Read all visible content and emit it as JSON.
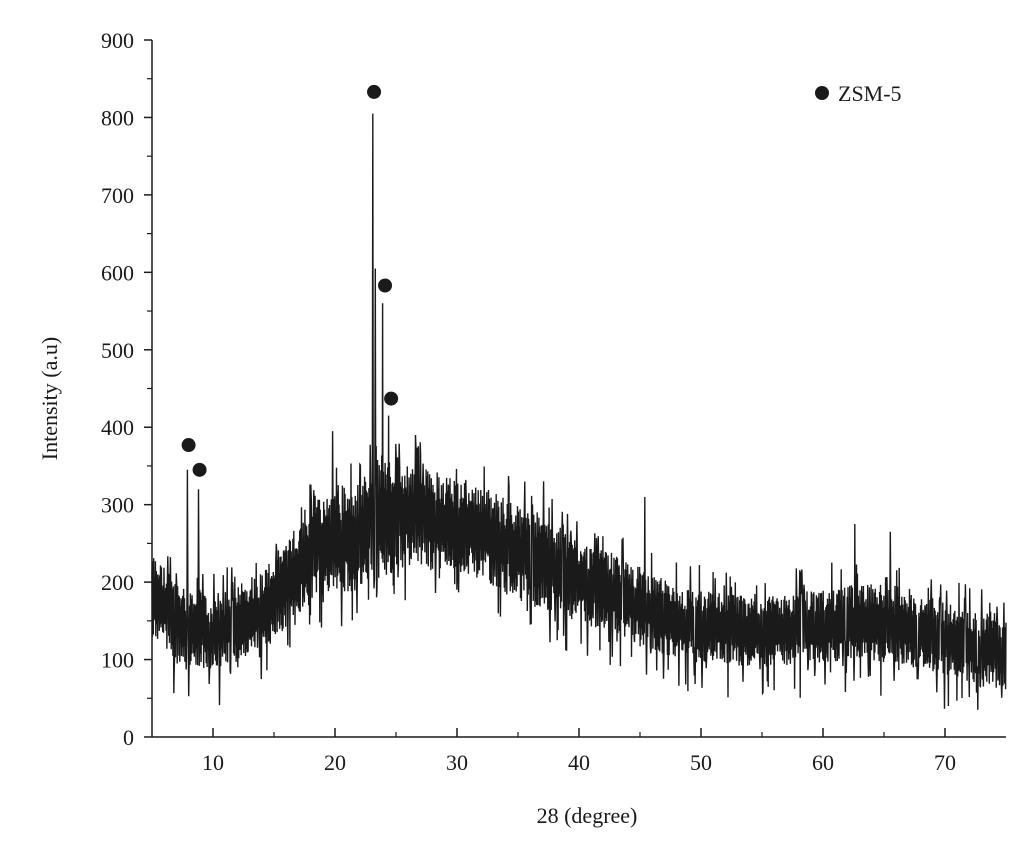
{
  "chart_data": {
    "type": "line",
    "xlabel": "28 (degree)",
    "ylabel": "Intensity (a.u)",
    "xlim": [
      5,
      75
    ],
    "ylim": [
      0,
      900
    ],
    "x_ticks": [
      10,
      20,
      30,
      40,
      50,
      60,
      70
    ],
    "y_ticks": [
      0,
      100,
      200,
      300,
      400,
      500,
      600,
      700,
      800,
      900
    ],
    "x_minor_step": 5,
    "y_minor_step": 50,
    "legend": {
      "label": "ZSM-5",
      "marker": "filled-circle",
      "placement": "top-right"
    },
    "line_color": "#1a1a1a",
    "background_envelope": [
      {
        "x": 5,
        "lo": 130,
        "hi": 240
      },
      {
        "x": 7,
        "lo": 95,
        "hi": 200
      },
      {
        "x": 9,
        "lo": 90,
        "hi": 190
      },
      {
        "x": 10,
        "lo": 80,
        "hi": 175
      },
      {
        "x": 12,
        "lo": 100,
        "hi": 200
      },
      {
        "x": 14,
        "lo": 110,
        "hi": 215
      },
      {
        "x": 16,
        "lo": 140,
        "hi": 255
      },
      {
        "x": 18,
        "lo": 170,
        "hi": 295
      },
      {
        "x": 20,
        "lo": 180,
        "hi": 320
      },
      {
        "x": 22,
        "lo": 190,
        "hi": 330
      },
      {
        "x": 24,
        "lo": 200,
        "hi": 370
      },
      {
        "x": 26,
        "lo": 220,
        "hi": 350
      },
      {
        "x": 28,
        "lo": 215,
        "hi": 345
      },
      {
        "x": 30,
        "lo": 210,
        "hi": 335
      },
      {
        "x": 32,
        "lo": 205,
        "hi": 325
      },
      {
        "x": 35,
        "lo": 175,
        "hi": 300
      },
      {
        "x": 38,
        "lo": 155,
        "hi": 275
      },
      {
        "x": 40,
        "lo": 145,
        "hi": 255
      },
      {
        "x": 42,
        "lo": 140,
        "hi": 240
      },
      {
        "x": 45,
        "lo": 120,
        "hi": 220
      },
      {
        "x": 48,
        "lo": 100,
        "hi": 195
      },
      {
        "x": 50,
        "lo": 95,
        "hi": 190
      },
      {
        "x": 55,
        "lo": 90,
        "hi": 180
      },
      {
        "x": 60,
        "lo": 95,
        "hi": 190
      },
      {
        "x": 63,
        "lo": 100,
        "hi": 200
      },
      {
        "x": 66,
        "lo": 95,
        "hi": 195
      },
      {
        "x": 70,
        "lo": 80,
        "hi": 175
      },
      {
        "x": 73,
        "lo": 65,
        "hi": 160
      },
      {
        "x": 75,
        "lo": 60,
        "hi": 150
      }
    ],
    "peaks": [
      {
        "x": 7.9,
        "y": 345
      },
      {
        "x": 8.8,
        "y": 320
      },
      {
        "x": 19.8,
        "y": 395
      },
      {
        "x": 23.1,
        "y": 805
      },
      {
        "x": 23.3,
        "y": 605
      },
      {
        "x": 23.9,
        "y": 560
      },
      {
        "x": 24.4,
        "y": 415
      },
      {
        "x": 26.6,
        "y": 390
      },
      {
        "x": 37.1,
        "y": 330
      },
      {
        "x": 45.4,
        "y": 310
      },
      {
        "x": 62.6,
        "y": 275
      },
      {
        "x": 65.5,
        "y": 265
      }
    ],
    "markers": [
      {
        "x": 8.0,
        "y": 377
      },
      {
        "x": 8.9,
        "y": 345
      },
      {
        "x": 23.2,
        "y": 833
      },
      {
        "x": 24.1,
        "y": 583
      },
      {
        "x": 24.6,
        "y": 437
      }
    ]
  }
}
